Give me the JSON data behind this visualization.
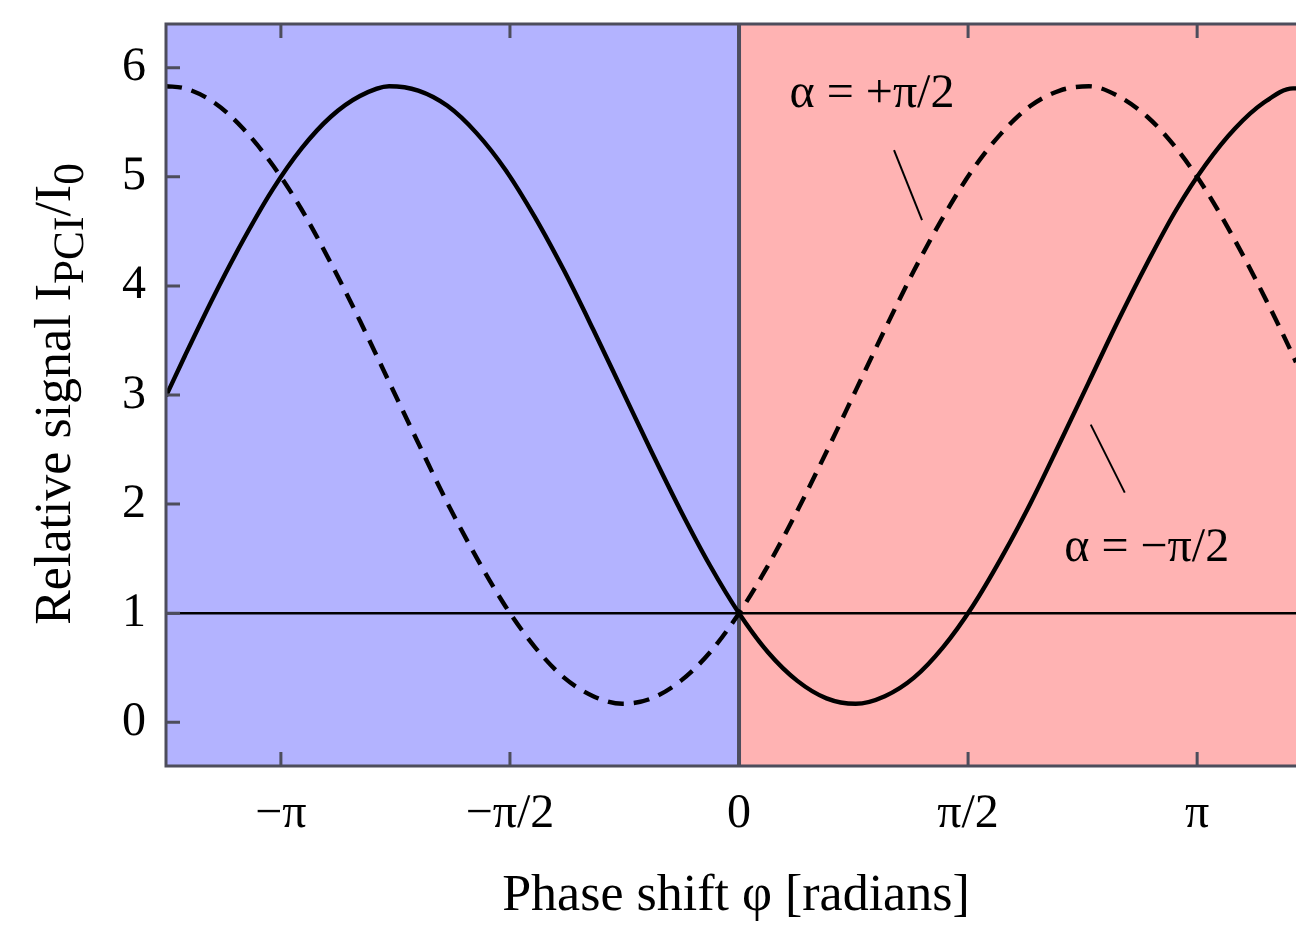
{
  "chart_data": {
    "type": "line",
    "xlabel": "Phase shift φ [radians]",
    "ylabel": "Relative signal I$_{PCI}$/I$_{0}$",
    "x": [
      -3.93,
      -3.8,
      -3.6,
      -3.4,
      -3.2,
      -3.0,
      -2.8,
      -2.6,
      -2.4,
      -2.2,
      -2.0,
      -1.8,
      -1.6,
      -1.4,
      -1.2,
      -1.0,
      -0.8,
      -0.6,
      -0.4,
      -0.2,
      0,
      0.2,
      0.4,
      0.6,
      0.8,
      1.0,
      1.2,
      1.4,
      1.6,
      1.8,
      2.0,
      2.2,
      2.4,
      2.6,
      2.8,
      3.0,
      3.2,
      3.4,
      3.6,
      3.8,
      3.82
    ],
    "series": [
      {
        "color": "#000000",
        "line_style": "solid",
        "values": [
          2.99,
          3.36,
          3.91,
          4.42,
          4.88,
          5.26,
          5.55,
          5.74,
          5.83,
          5.79,
          5.65,
          5.4,
          5.06,
          4.63,
          4.14,
          3.6,
          3.04,
          2.48,
          1.94,
          1.44,
          1,
          0.64,
          0.38,
          0.22,
          0.17,
          0.24,
          0.41,
          0.69,
          1.06,
          1.51,
          2.01,
          2.56,
          3.12,
          3.68,
          4.21,
          4.7,
          5.11,
          5.44,
          5.68,
          5.81,
          5.81
        ]
      },
      {
        "color": "#000000",
        "line_style": "dashed",
        "values": [
          5.83,
          5.81,
          5.68,
          5.44,
          5.11,
          4.7,
          4.21,
          3.68,
          3.12,
          2.56,
          2.01,
          1.51,
          1.06,
          0.69,
          0.41,
          0.24,
          0.17,
          0.22,
          0.38,
          0.64,
          1,
          1.44,
          1.94,
          2.48,
          3.04,
          3.6,
          4.14,
          4.63,
          5.06,
          5.4,
          5.65,
          5.79,
          5.83,
          5.74,
          5.55,
          5.26,
          4.88,
          4.42,
          3.91,
          3.36,
          3.3
        ]
      }
    ],
    "xlim": [
      -3.93,
      3.82
    ],
    "ylim": [
      -0.4,
      6.4
    ],
    "xticks": [
      {
        "value": -3.142,
        "label": "−π"
      },
      {
        "value": -1.571,
        "label": "−π/2"
      },
      0,
      {
        "value": 1.571,
        "label": "π/2"
      },
      {
        "value": 3.142,
        "label": "π"
      }
    ],
    "yticks": [
      0,
      1,
      2,
      3,
      4,
      5,
      6
    ],
    "bands": [
      {
        "axis": "x",
        "from": -3.93,
        "to": 0,
        "color": "#b3b3ff"
      },
      {
        "axis": "x",
        "from": 0,
        "to": 3.82,
        "color": "#ffb3b3"
      }
    ],
    "ref_lines": [
      {
        "axis": "y",
        "value": 1,
        "color": "#000000"
      },
      {
        "axis": "x",
        "value": 0,
        "color": "#4d4d5c"
      }
    ],
    "annotations": [
      {
        "text": "α = +π/2",
        "x": 1.31,
        "y": 4.42
      },
      {
        "text": "α = −π/2",
        "x": 2.33,
        "y": 2.93
      }
    ],
    "marker": "none"
  }
}
